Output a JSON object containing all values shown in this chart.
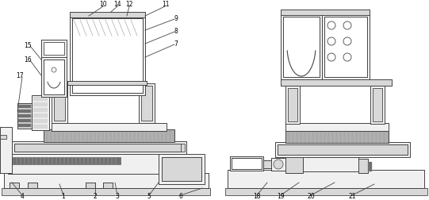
{
  "bg_color": "#ffffff",
  "lc": "#444444",
  "lw": 0.6,
  "fill_white": "#ffffff",
  "fill_light": "#f0f0f0",
  "fill_mid": "#d8d8d8",
  "fill_dark": "#aaaaaa",
  "fill_darkest": "#707070"
}
